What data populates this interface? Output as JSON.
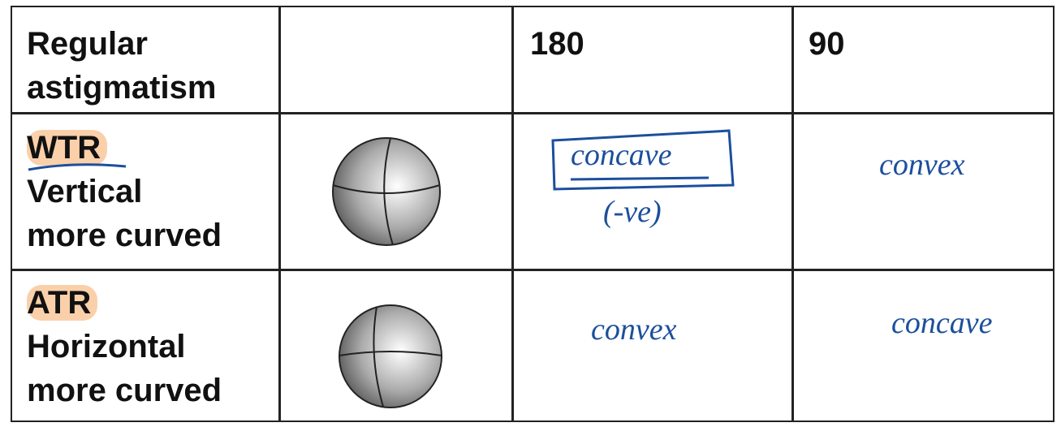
{
  "table": {
    "header": {
      "corner": [
        "Regular",
        "astigmatism"
      ],
      "columns": [
        "180",
        "90"
      ]
    },
    "rows": [
      {
        "code": "WTR",
        "description": [
          "Vertical",
          "more curved"
        ],
        "at_180": "concave",
        "at_180_note": "(-ve)",
        "at_90": "convex"
      },
      {
        "code": "ATR",
        "description": [
          "Horizontal",
          "more curved"
        ],
        "at_180": "convex",
        "at_90": "concave"
      }
    ]
  }
}
